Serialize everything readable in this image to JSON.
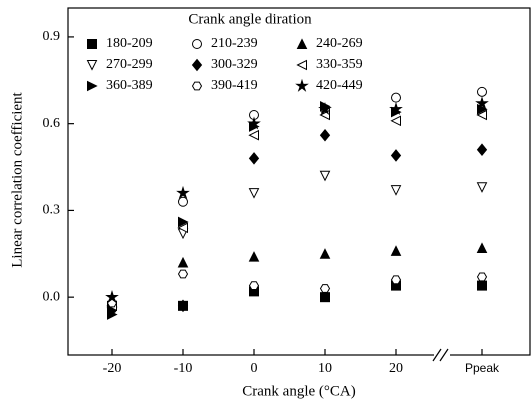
{
  "chart_data": {
    "type": "scatter",
    "legend_title": "Crank angle diration",
    "x_label": "Crank angle (°CA)",
    "y_label": "Linear correlation coefficient",
    "categories": [
      "-20",
      "-10",
      "0",
      "10",
      "20",
      "Ppeak"
    ],
    "ylim": [
      -0.2,
      1.0
    ],
    "yticks": [
      {
        "value": 0,
        "label": "0.0"
      },
      0.3,
      0.6,
      0.9
    ],
    "series": [
      {
        "name": "180-209",
        "color": "#000000",
        "marker": "square-filled",
        "values": [
          -0.03,
          -0.03,
          0.02,
          0.0,
          0.04,
          0.04
        ]
      },
      {
        "name": "210-239",
        "color": "#000000",
        "marker": "circle-open",
        "values": [
          -0.04,
          0.33,
          0.63,
          0.65,
          0.69,
          0.71
        ]
      },
      {
        "name": "240-269",
        "color": "#000000",
        "marker": "triangle-up-filled",
        "values": [
          -0.02,
          0.12,
          0.14,
          0.15,
          0.16,
          0.17
        ]
      },
      {
        "name": "270-299",
        "color": "#000000",
        "marker": "triangle-down-open",
        "values": [
          -0.05,
          0.22,
          0.36,
          0.42,
          0.37,
          0.38
        ]
      },
      {
        "name": "300-329",
        "color": "#000000",
        "marker": "diamond-filled",
        "values": [
          -0.04,
          -0.03,
          0.48,
          0.56,
          0.49,
          0.51
        ]
      },
      {
        "name": "330-359",
        "color": "#000000",
        "marker": "triangle-left-open",
        "values": [
          -0.03,
          0.24,
          0.56,
          0.63,
          0.61,
          0.63
        ]
      },
      {
        "name": "360-389",
        "color": "#000000",
        "marker": "triangle-right-filled",
        "values": [
          -0.06,
          0.26,
          0.59,
          0.66,
          0.64,
          0.65
        ]
      },
      {
        "name": "390-419",
        "color": "#000000",
        "marker": "hexagon-open",
        "values": [
          -0.02,
          0.08,
          0.04,
          0.03,
          0.06,
          0.07
        ]
      },
      {
        "name": "420-449",
        "color": "#000000",
        "marker": "star-filled",
        "values": [
          0.0,
          0.36,
          0.6,
          0.65,
          0.65,
          0.67
        ]
      }
    ]
  }
}
